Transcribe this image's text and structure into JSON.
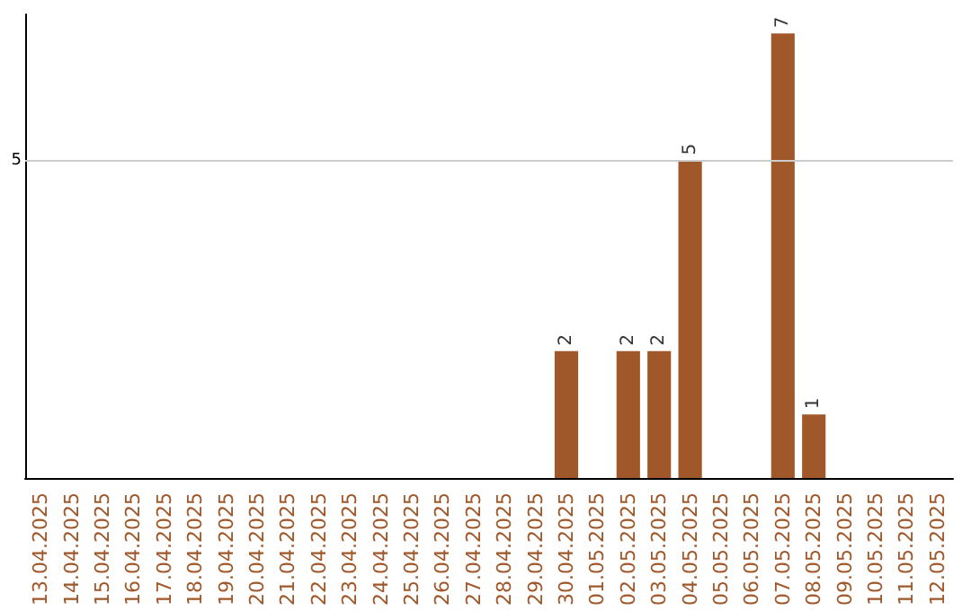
{
  "chart_data": {
    "type": "bar",
    "categories": [
      "13.04.2025",
      "14.04.2025",
      "15.04.2025",
      "16.04.2025",
      "17.04.2025",
      "18.04.2025",
      "19.04.2025",
      "20.04.2025",
      "21.04.2025",
      "22.04.2025",
      "23.04.2025",
      "24.04.2025",
      "25.04.2025",
      "26.04.2025",
      "27.04.2025",
      "28.04.2025",
      "29.04.2025",
      "30.04.2025",
      "01.05.2025",
      "02.05.2025",
      "03.05.2025",
      "04.05.2025",
      "05.05.2025",
      "06.05.2025",
      "07.05.2025",
      "08.05.2025",
      "09.05.2025",
      "10.05.2025",
      "11.05.2025",
      "12.05.2025"
    ],
    "values": [
      null,
      null,
      null,
      null,
      null,
      null,
      null,
      null,
      null,
      null,
      null,
      null,
      null,
      null,
      null,
      null,
      null,
      2,
      null,
      2,
      2,
      5,
      null,
      null,
      7,
      1,
      null,
      null,
      null,
      null
    ],
    "color": "#a0572a",
    "ylim": [
      0,
      7.3
    ],
    "data_labels": true,
    "ref_lines": [
      {
        "axis": "y",
        "value": 5,
        "label": "5",
        "color": "#cccccc"
      }
    ]
  }
}
